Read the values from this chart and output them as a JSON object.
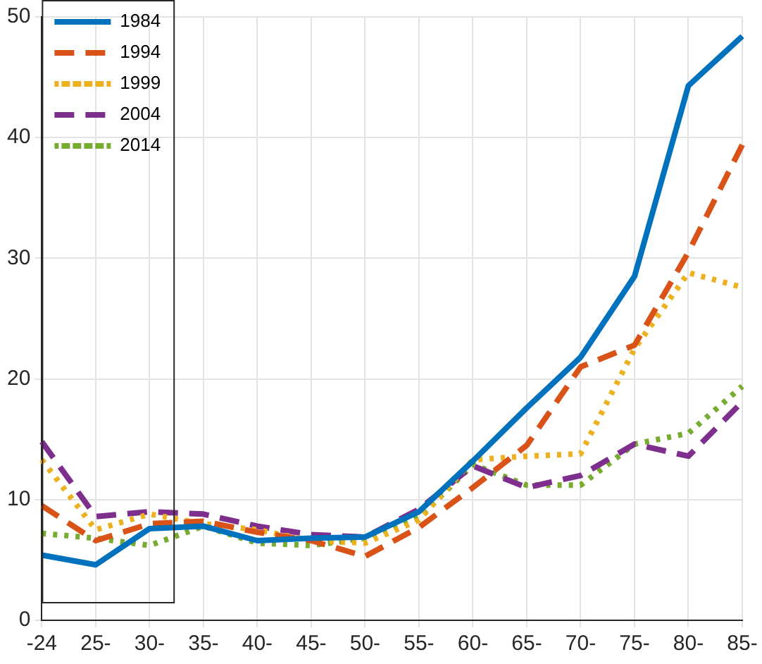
{
  "chart_data": {
    "type": "line",
    "categories": [
      "-24",
      "25-",
      "30-",
      "35-",
      "40-",
      "45-",
      "50-",
      "55-",
      "60-",
      "65-",
      "70-",
      "75-",
      "80-",
      "85-"
    ],
    "series": [
      {
        "name": "1984",
        "color": "#0072bd",
        "line_style": "solid",
        "values": [
          5.4,
          4.6,
          7.6,
          7.8,
          6.6,
          6.8,
          6.9,
          9.0,
          13.2,
          17.6,
          21.8,
          28.5,
          44.3,
          48.4
        ]
      },
      {
        "name": "1994",
        "color": "#d95319",
        "line_style": "dashed",
        "values": [
          9.5,
          6.6,
          8.0,
          8.2,
          7.3,
          6.6,
          5.3,
          7.7,
          11.0,
          14.5,
          21.0,
          22.8,
          30.5,
          39.4
        ]
      },
      {
        "name": "1999",
        "color": "#edb120",
        "line_style": "dotted",
        "values": [
          13.3,
          7.5,
          8.8,
          8.0,
          7.5,
          6.6,
          6.4,
          8.3,
          13.3,
          13.6,
          13.8,
          22.5,
          28.8,
          27.6
        ]
      },
      {
        "name": "2004",
        "color": "#7e2f8e",
        "line_style": "dashed",
        "values": [
          14.8,
          8.6,
          9.0,
          8.8,
          7.8,
          7.1,
          6.9,
          9.2,
          12.8,
          11.0,
          12.0,
          14.6,
          13.6,
          18.1
        ]
      },
      {
        "name": "2014",
        "color": "#77ac30",
        "line_style": "dotted",
        "values": [
          7.2,
          6.8,
          6.2,
          7.8,
          6.4,
          6.2,
          6.8,
          8.5,
          12.9,
          11.2,
          11.2,
          14.6,
          15.5,
          19.4
        ]
      }
    ],
    "ylim": [
      0,
      50
    ],
    "yticks": [
      0,
      10,
      20,
      30,
      40,
      50
    ],
    "grid": true,
    "legend": "top left",
    "marker": "none"
  }
}
